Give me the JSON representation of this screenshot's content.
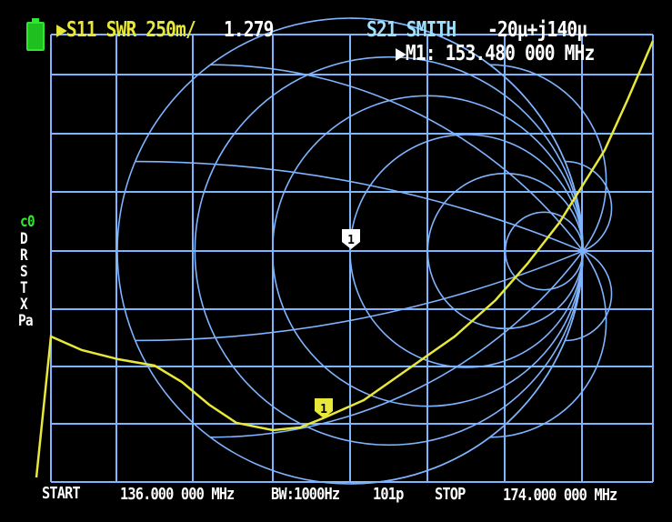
{
  "header": {
    "trace1": "▶S11 SWR 250m/",
    "trace1_value": "1.279",
    "trace2": "S21 SMITH",
    "trace2_value": "-20µ+j140µ",
    "marker": "▶M1: 153.480 000 MHz"
  },
  "sidebar": {
    "cal_status": "c0",
    "flags": [
      "D",
      "R",
      "S",
      "T",
      "X",
      "Pa"
    ]
  },
  "footer": {
    "start_label": "START",
    "start_freq": "136.000 000 MHz",
    "bandwidth": "BW:1000Hz",
    "points": "101p",
    "stop_label": "STOP",
    "stop_freq": "174.000 000 MHz"
  },
  "markers": [
    {
      "label": "1",
      "trace": "S21 SMITH",
      "color": "#ffffff"
    },
    {
      "label": "1",
      "trace": "S11 SWR",
      "color": "#e8e83a"
    }
  ],
  "battery_icon": "battery-icon",
  "colors": {
    "grid": "#7fb4ff",
    "trace1": "#e8e83a",
    "trace2": "#9fe0ff",
    "text": "#ffffff",
    "status": "#2ee82e"
  }
}
